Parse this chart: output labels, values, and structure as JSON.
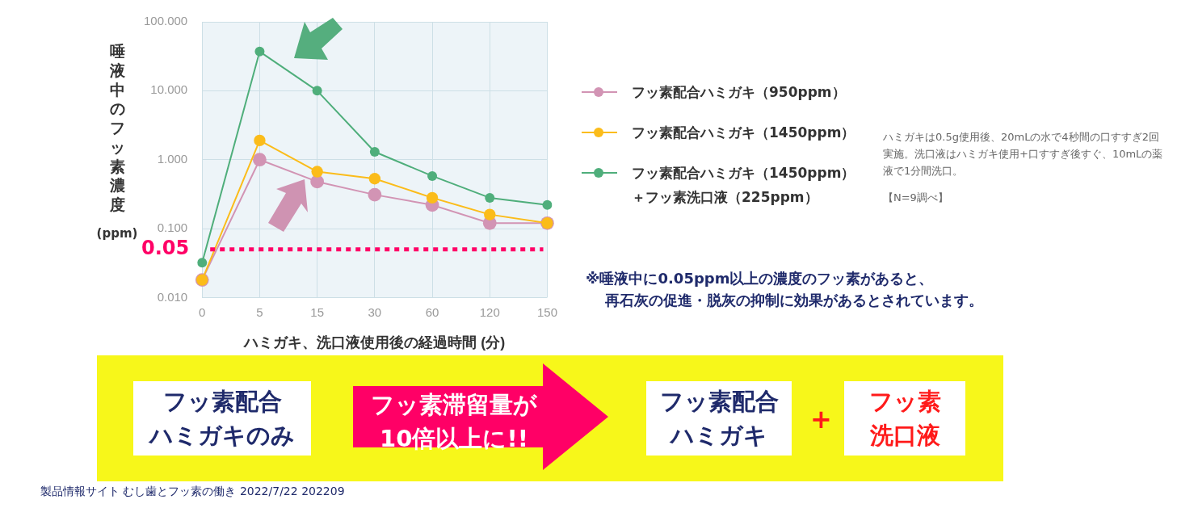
{
  "chart_data": {
    "type": "line",
    "ylabel": "唾液中のフッ素濃度 (ppm)",
    "xlabel": "ハミガキ、洗口液使用後の経過時間 (分)",
    "categories": [
      "0",
      "5",
      "15",
      "30",
      "60",
      "120",
      "150"
    ],
    "series": [
      {
        "name": "フッ素配合ハミガキ（950ppm）",
        "color": "#d294b4",
        "values": [
          0.018,
          1.0,
          0.48,
          0.31,
          0.22,
          0.12,
          0.12
        ]
      },
      {
        "name": "フッ素配合ハミガキ（1450ppm）",
        "color": "#fbbc1a",
        "values": [
          0.018,
          1.9,
          0.67,
          0.53,
          0.28,
          0.16,
          0.12
        ]
      },
      {
        "name": "フッ素配合ハミガキ（1450ppm）＋フッ素洗口液（225ppm）",
        "color": "#4fae7b",
        "values": [
          0.032,
          37,
          10,
          1.3,
          0.58,
          0.28,
          0.22
        ]
      }
    ],
    "log": true,
    "ylim": [
      0.01,
      100
    ],
    "yticks": [
      {
        "value": 0.01,
        "label": "0.010"
      },
      {
        "value": 0.1,
        "label": "0.100"
      },
      {
        "value": 1,
        "label": "1.000"
      },
      {
        "value": 10,
        "label": "10.000"
      },
      {
        "value": 100,
        "label": "100.000"
      }
    ],
    "ref_lines": [
      {
        "axis": "y",
        "value": 0.05,
        "label": "0.05",
        "color": "#ff0066",
        "line_style": "dotted"
      }
    ],
    "grid": true,
    "legend": "right",
    "marker": "circle",
    "line_style": "solid",
    "annotations": [
      "ハミガキは0.5g使用後、20mLの水で4秒間の口すすぎ2回実施。洗口液はハミガキ使用+口すすぎ後すぐ、10mLの薬液で1分間洗口。",
      "【N=9調べ】",
      "※唾液中に0.05ppm以上の濃度のフッ素があると、",
      "再石灰の促進・脱灰の抑制に効果があるとされています。",
      "フッ素配合",
      "ハミガキのみ",
      "フッ素滞留量が",
      "10倍以上に!!",
      "フッ素配合",
      "ハミガキ",
      "+",
      "フッ素",
      "洗口液",
      "製品情報サイト むし歯とフッ素の働き 2022/7/22 202209"
    ]
  }
}
